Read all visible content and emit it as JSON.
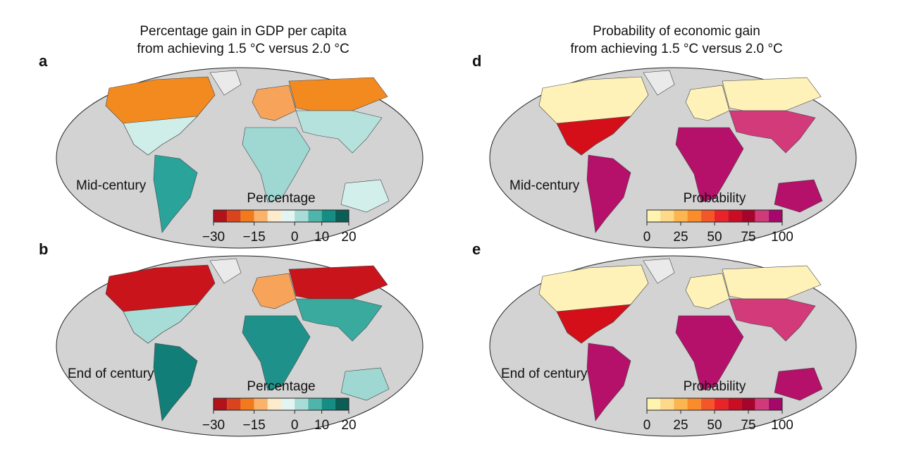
{
  "columns": [
    {
      "title_lines": [
        "Percentage gain in GDP per capita",
        "from achieving 1.5 °C versus 2.0 °C"
      ],
      "legend": {
        "title": "Percentage",
        "range": [
          -30,
          20
        ],
        "ticks": [
          {
            "value": -30,
            "label": "−30"
          },
          {
            "value": -15,
            "label": "−15"
          },
          0,
          10,
          20
        ],
        "colors": [
          "#b2131a",
          "#d9431e",
          "#f27a1d",
          "#fbb36b",
          "#fdebcb",
          "#e3f5f2",
          "#a8dcd6",
          "#4fb5aa",
          "#148d84",
          "#0b5e55"
        ]
      },
      "panels": [
        {
          "letter": "a",
          "period": "Mid-century"
        },
        {
          "letter": "b",
          "period": "End of century"
        }
      ]
    },
    {
      "title_lines": [
        "Probability of economic gain",
        "from achieving 1.5 °C versus 2.0 °C"
      ],
      "legend": {
        "title": "Probability",
        "range": [
          0,
          100
        ],
        "ticks": [
          0,
          25,
          50,
          75,
          100
        ],
        "colors": [
          "#fff3b0",
          "#fed98a",
          "#fdb64f",
          "#fb8c2a",
          "#f4562a",
          "#e8242a",
          "#c90e24",
          "#a5052a",
          "#d03a7a",
          "#a5086a"
        ]
      },
      "panels": [
        {
          "letter": "d",
          "period": "Mid-century"
        },
        {
          "letter": "e",
          "period": "End of century"
        }
      ]
    }
  ]
}
